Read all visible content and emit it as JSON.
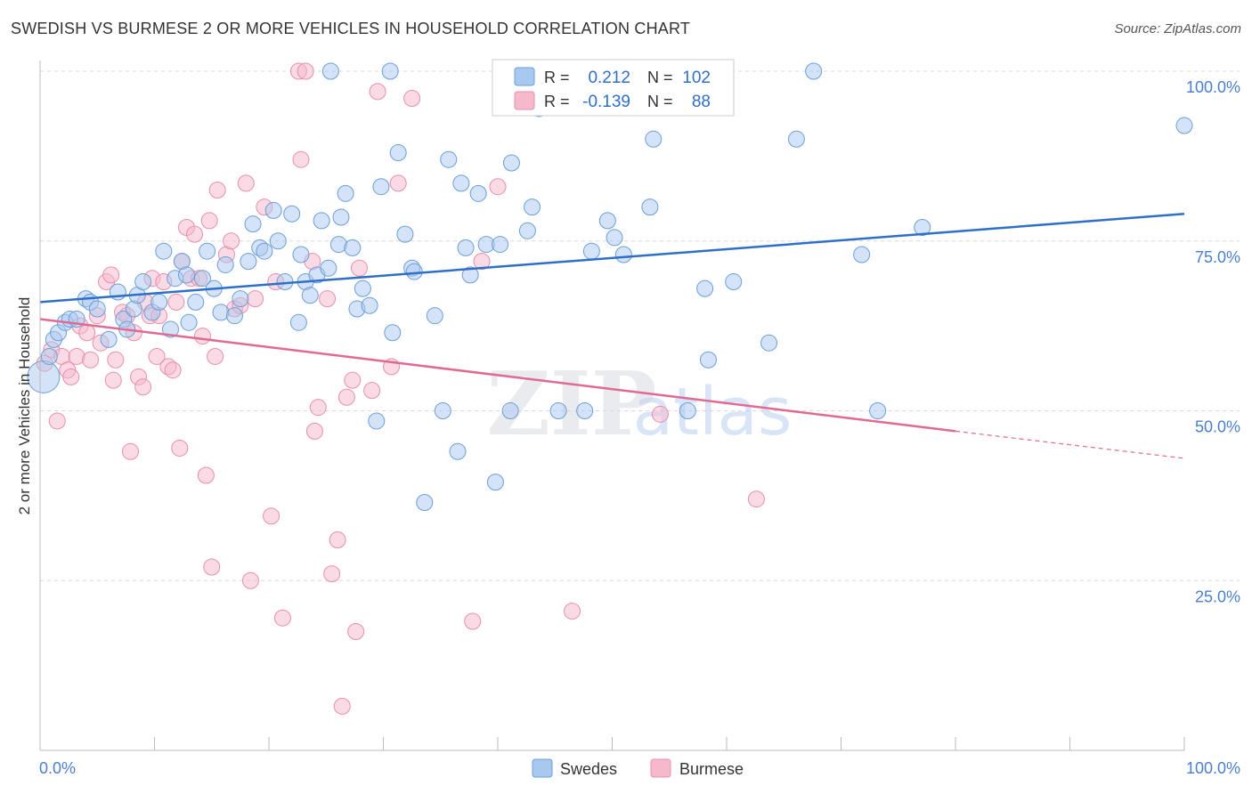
{
  "header": {
    "title": "SWEDISH VS BURMESE 2 OR MORE VEHICLES IN HOUSEHOLD CORRELATION CHART",
    "source": "Source: ZipAtlas.com"
  },
  "watermark": {
    "zip": "ZIP",
    "atlas": "atlas"
  },
  "stats": {
    "swedes": {
      "r_label": "R =",
      "r_value": "0.212",
      "n_label": "N =",
      "n_value": "102"
    },
    "burmese": {
      "r_label": "R =",
      "r_value": "-0.139",
      "n_label": "N =",
      "n_value": "88"
    }
  },
  "colors": {
    "swedes_fill": "#a9c8f0",
    "swedes_stroke": "#6a9fd8",
    "swedes_line": "#2f6fc8",
    "burmese_fill": "#f6b8cb",
    "burmese_stroke": "#e98fab",
    "burmese_line": "#e06a93",
    "tick_label": "#4a7fd0",
    "grid": "#d8d8d8"
  },
  "chart_data": {
    "type": "scatter",
    "title": "SWEDISH VS BURMESE 2 OR MORE VEHICLES IN HOUSEHOLD CORRELATION CHART",
    "xlabel": "",
    "ylabel": "2 or more Vehicles in Household",
    "xlim": [
      0,
      100
    ],
    "ylim": [
      0,
      100
    ],
    "x_tick_labels": [
      "0.0%",
      "100.0%"
    ],
    "y_tick_labels": [
      "25.0%",
      "50.0%",
      "75.0%",
      "100.0%"
    ],
    "y_ticks": [
      25,
      50,
      75,
      100
    ],
    "grid": true,
    "legend_position": "bottom-center",
    "series": [
      {
        "name": "Swedes",
        "r": 0.212,
        "n": 102,
        "trend": {
          "x0": 0,
          "y0": 66.0,
          "x1": 100,
          "y1": 79.0
        },
        "points": [
          [
            0.3,
            55.0
          ],
          [
            0.8,
            58.0
          ],
          [
            1.2,
            60.5
          ],
          [
            1.6,
            61.5
          ],
          [
            2.2,
            63.0
          ],
          [
            2.6,
            63.5
          ],
          [
            3.2,
            63.5
          ],
          [
            4.0,
            66.5
          ],
          [
            4.4,
            66.0
          ],
          [
            5.0,
            65.0
          ],
          [
            6.0,
            60.5
          ],
          [
            6.8,
            67.5
          ],
          [
            7.3,
            63.5
          ],
          [
            7.6,
            62.0
          ],
          [
            8.2,
            65.0
          ],
          [
            8.5,
            67.0
          ],
          [
            9.0,
            69.0
          ],
          [
            9.8,
            64.5
          ],
          [
            10.4,
            66.0
          ],
          [
            10.8,
            73.5
          ],
          [
            11.4,
            62.0
          ],
          [
            11.8,
            69.5
          ],
          [
            12.4,
            72.0
          ],
          [
            12.8,
            70.0
          ],
          [
            13.0,
            63.0
          ],
          [
            13.6,
            66.0
          ],
          [
            14.2,
            69.5
          ],
          [
            14.6,
            73.5
          ],
          [
            15.2,
            68.0
          ],
          [
            15.8,
            64.5
          ],
          [
            16.2,
            71.5
          ],
          [
            17.0,
            64.0
          ],
          [
            17.5,
            66.5
          ],
          [
            18.2,
            72.0
          ],
          [
            18.6,
            77.5
          ],
          [
            19.2,
            74.0
          ],
          [
            19.6,
            73.5
          ],
          [
            20.4,
            79.5
          ],
          [
            20.8,
            75.0
          ],
          [
            21.4,
            69.0
          ],
          [
            22.0,
            79.0
          ],
          [
            22.6,
            63.0
          ],
          [
            22.8,
            73.0
          ],
          [
            23.2,
            69.0
          ],
          [
            23.6,
            67.0
          ],
          [
            24.2,
            70.0
          ],
          [
            24.6,
            78.0
          ],
          [
            25.2,
            71.0
          ],
          [
            25.4,
            100.0
          ],
          [
            26.1,
            74.5
          ],
          [
            26.3,
            78.5
          ],
          [
            26.7,
            82.0
          ],
          [
            27.3,
            74.0
          ],
          [
            27.7,
            65.0
          ],
          [
            28.2,
            68.0
          ],
          [
            28.8,
            65.5
          ],
          [
            29.4,
            48.5
          ],
          [
            29.8,
            83.0
          ],
          [
            30.6,
            100.0
          ],
          [
            30.8,
            61.5
          ],
          [
            31.3,
            88.0
          ],
          [
            31.9,
            76.0
          ],
          [
            32.5,
            71.0
          ],
          [
            32.7,
            70.5
          ],
          [
            33.6,
            36.5
          ],
          [
            34.5,
            64.0
          ],
          [
            35.2,
            50.0
          ],
          [
            35.7,
            87.0
          ],
          [
            36.5,
            44.0
          ],
          [
            36.8,
            83.5
          ],
          [
            37.2,
            74.0
          ],
          [
            37.6,
            70.0
          ],
          [
            38.3,
            82.0
          ],
          [
            39.0,
            74.5
          ],
          [
            39.8,
            39.5
          ],
          [
            40.2,
            74.5
          ],
          [
            41.1,
            50.0
          ],
          [
            41.2,
            86.5
          ],
          [
            42.6,
            76.5
          ],
          [
            43.0,
            80.0
          ],
          [
            43.6,
            94.5
          ],
          [
            45.3,
            50.0
          ],
          [
            47.6,
            50.0
          ],
          [
            48.2,
            73.5
          ],
          [
            49.6,
            78.0
          ],
          [
            50.2,
            75.5
          ],
          [
            51.0,
            73.0
          ],
          [
            53.3,
            80.0
          ],
          [
            53.6,
            90.0
          ],
          [
            56.6,
            50.0
          ],
          [
            58.1,
            68.0
          ],
          [
            58.4,
            57.5
          ],
          [
            60.6,
            69.0
          ],
          [
            63.7,
            60.0
          ],
          [
            66.1,
            90.0
          ],
          [
            67.6,
            100.0
          ],
          [
            71.8,
            73.0
          ],
          [
            73.2,
            50.0
          ],
          [
            77.1,
            77.0
          ],
          [
            100.0,
            92.0
          ]
        ]
      },
      {
        "name": "Burmese",
        "r": -0.139,
        "n": 88,
        "trend": {
          "x0": 0,
          "y0": 63.5,
          "x1": 80,
          "y1": 47.0,
          "dash_x1": 100,
          "dash_y1": 43.0
        },
        "points": [
          [
            0.4,
            57.0
          ],
          [
            1.0,
            59.0
          ],
          [
            1.5,
            48.5
          ],
          [
            1.9,
            58.0
          ],
          [
            2.4,
            56.0
          ],
          [
            2.7,
            55.0
          ],
          [
            3.2,
            58.0
          ],
          [
            3.5,
            62.5
          ],
          [
            4.1,
            61.5
          ],
          [
            4.4,
            57.5
          ],
          [
            5.0,
            64.0
          ],
          [
            5.3,
            60.0
          ],
          [
            5.8,
            69.0
          ],
          [
            6.2,
            70.0
          ],
          [
            6.4,
            54.5
          ],
          [
            6.6,
            57.5
          ],
          [
            7.2,
            64.5
          ],
          [
            7.6,
            64.0
          ],
          [
            7.9,
            44.0
          ],
          [
            8.2,
            61.5
          ],
          [
            8.6,
            55.0
          ],
          [
            9.0,
            53.5
          ],
          [
            9.2,
            66.0
          ],
          [
            9.6,
            64.0
          ],
          [
            9.8,
            69.5
          ],
          [
            10.2,
            58.0
          ],
          [
            10.4,
            64.0
          ],
          [
            10.8,
            69.0
          ],
          [
            11.2,
            56.5
          ],
          [
            11.6,
            56.0
          ],
          [
            11.9,
            66.0
          ],
          [
            12.2,
            44.5
          ],
          [
            12.4,
            72.0
          ],
          [
            12.8,
            77.0
          ],
          [
            13.2,
            69.5
          ],
          [
            13.5,
            76.0
          ],
          [
            13.9,
            69.5
          ],
          [
            14.2,
            61.0
          ],
          [
            14.5,
            40.5
          ],
          [
            14.8,
            78.0
          ],
          [
            15.0,
            27.0
          ],
          [
            15.3,
            58.0
          ],
          [
            15.5,
            82.5
          ],
          [
            16.3,
            73.0
          ],
          [
            16.7,
            75.0
          ],
          [
            17.0,
            65.0
          ],
          [
            17.5,
            65.5
          ],
          [
            18.0,
            83.5
          ],
          [
            18.4,
            25.0
          ],
          [
            18.8,
            66.5
          ],
          [
            19.6,
            80.0
          ],
          [
            20.2,
            34.5
          ],
          [
            20.6,
            69.0
          ],
          [
            21.2,
            19.5
          ],
          [
            22.6,
            100.0
          ],
          [
            22.8,
            87.0
          ],
          [
            23.2,
            100.0
          ],
          [
            23.8,
            72.0
          ],
          [
            24.0,
            47.0
          ],
          [
            24.3,
            50.5
          ],
          [
            25.1,
            66.5
          ],
          [
            25.5,
            26.0
          ],
          [
            26.0,
            31.0
          ],
          [
            26.4,
            6.5
          ],
          [
            26.8,
            52.0
          ],
          [
            27.3,
            54.5
          ],
          [
            27.6,
            17.5
          ],
          [
            27.9,
            71.0
          ],
          [
            29.0,
            53.0
          ],
          [
            29.5,
            97.0
          ],
          [
            30.7,
            56.5
          ],
          [
            31.3,
            83.5
          ],
          [
            32.5,
            96.0
          ],
          [
            37.8,
            19.0
          ],
          [
            38.6,
            72.0
          ],
          [
            40.0,
            83.0
          ],
          [
            46.5,
            20.5
          ],
          [
            54.2,
            49.5
          ],
          [
            62.6,
            37.0
          ]
        ]
      }
    ]
  }
}
